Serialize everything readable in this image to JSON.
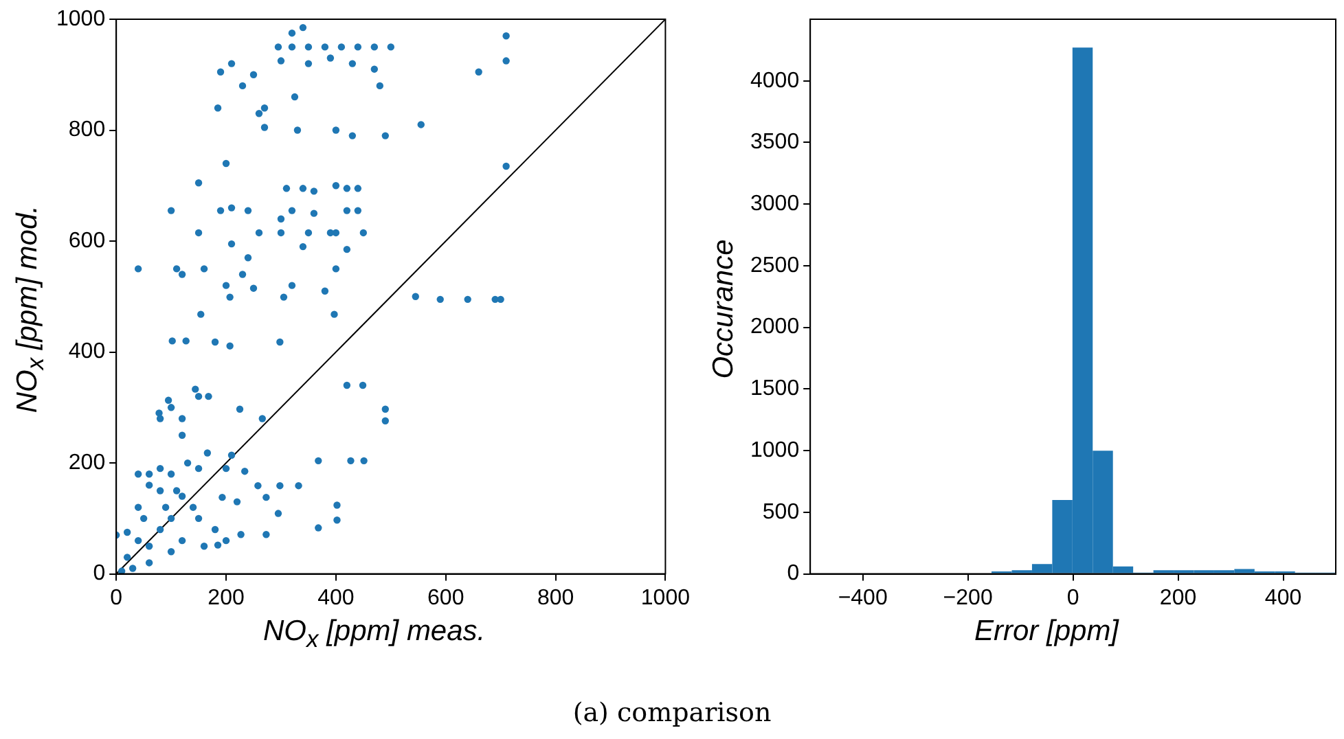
{
  "chart_data": [
    {
      "type": "scatter",
      "xlabel": "NO$_{x}$ [ppm] meas.",
      "ylabel": "NO$_{x}$ [ppm] mod.",
      "xlim": [
        0,
        1000
      ],
      "ylim": [
        0,
        1000
      ],
      "xticks": [
        0,
        200,
        400,
        600,
        800,
        1000
      ],
      "yticks": [
        0,
        200,
        400,
        600,
        800,
        1000
      ],
      "marker": "circle",
      "annotations": [
        "(a) comparison"
      ],
      "series": [
        {
          "type": "scatter",
          "color": "#1f77b4",
          "x": [
            295,
            320,
            350,
            380,
            410,
            440,
            470,
            500,
            340,
            320,
            710,
            710,
            660,
            555,
            545,
            590,
            640,
            690,
            700,
            710,
            190,
            210,
            250,
            300,
            350,
            390,
            430,
            470,
            480,
            230,
            270,
            185,
            325,
            260,
            200,
            270,
            330,
            400,
            430,
            490,
            310,
            340,
            420,
            440,
            150,
            400,
            360,
            100,
            190,
            240,
            320,
            360,
            420,
            440,
            300,
            210,
            260,
            300,
            350,
            400,
            450,
            150,
            390,
            240,
            420,
            340,
            210,
            40,
            110,
            160,
            230,
            400,
            120,
            250,
            200,
            320,
            380,
            207,
            305,
            154,
            397,
            102,
            127,
            180,
            207,
            298,
            144,
            420,
            449,
            490,
            490,
            368,
            427,
            451,
            368,
            402,
            402,
            295,
            227,
            273,
            258,
            298,
            332,
            273,
            234,
            193,
            185,
            166,
            210,
            78,
            95,
            120,
            225,
            266,
            168,
            0,
            20,
            40,
            60,
            80,
            100,
            120,
            80,
            60,
            100,
            150,
            140,
            150,
            120,
            100,
            60,
            30,
            10,
            160,
            200,
            180,
            40,
            80,
            130,
            120,
            100,
            150,
            80,
            60,
            200,
            220,
            20,
            50,
            90,
            40,
            110
          ],
          "values": [
            950,
            950,
            950,
            950,
            950,
            950,
            950,
            950,
            985,
            975,
            970,
            925,
            905,
            810,
            500,
            495,
            495,
            495,
            495,
            735,
            905,
            920,
            900,
            925,
            920,
            930,
            920,
            910,
            880,
            880,
            840,
            840,
            860,
            830,
            740,
            805,
            800,
            800,
            790,
            790,
            695,
            695,
            695,
            695,
            705,
            700,
            690,
            655,
            655,
            655,
            655,
            650,
            655,
            655,
            640,
            660,
            615,
            615,
            615,
            615,
            615,
            615,
            615,
            570,
            585,
            590,
            595,
            550,
            550,
            550,
            540,
            550,
            540,
            515,
            520,
            520,
            510,
            499,
            499,
            468,
            468,
            420,
            420,
            418,
            411,
            418,
            333,
            340,
            340,
            297,
            276,
            204,
            204,
            204,
            83,
            124,
            97,
            109,
            71,
            71,
            159,
            159,
            159,
            138,
            185,
            138,
            52,
            218,
            214,
            290,
            313,
            280,
            297,
            280,
            320,
            70,
            75,
            60,
            50,
            80,
            100,
            140,
            150,
            160,
            180,
            190,
            120,
            100,
            60,
            40,
            20,
            10,
            5,
            50,
            60,
            80,
            120,
            190,
            200,
            250,
            300,
            320,
            280,
            180,
            190,
            130,
            30,
            100,
            120,
            180,
            150
          ]
        },
        {
          "type": "line",
          "color": "#000000",
          "marker": "none",
          "x": [
            0,
            1000
          ],
          "values": [
            0,
            1000
          ]
        }
      ]
    },
    {
      "type": "histogram",
      "xlabel": "Error [ppm]",
      "ylabel": "Occurance",
      "color": "#1f77b4",
      "xlim": [
        -500,
        500
      ],
      "ylim": [
        0,
        4500
      ],
      "xticks": [
        {
          "value": -400,
          "label": "−400"
        },
        {
          "value": -200,
          "label": "−200"
        },
        0,
        200,
        400
      ],
      "yticks": [
        0,
        500,
        1000,
        1500,
        2000,
        2500,
        3000,
        3500,
        4000
      ],
      "bins": [
        -155,
        -116.5,
        -78,
        -39.5,
        -1,
        37.5,
        76,
        114.5,
        153,
        191.5,
        230,
        268.5,
        307,
        345.5,
        384,
        422.5,
        461,
        499.5
      ],
      "values": [
        20,
        30,
        80,
        600,
        4270,
        1000,
        60,
        10,
        30,
        30,
        30,
        30,
        40,
        20,
        20,
        10,
        10
      ]
    }
  ]
}
